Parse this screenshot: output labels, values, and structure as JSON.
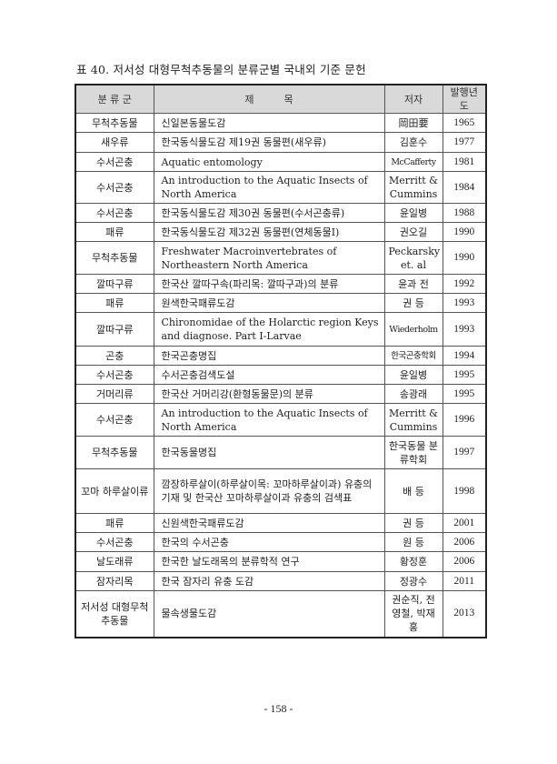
{
  "caption": "표 40. 저서성 대형무척추동물의 분류군별 국내외 기준 문헌",
  "table": {
    "headers": [
      "분 류 군",
      "제　　　목",
      "저자",
      "발행년도"
    ],
    "rows": [
      {
        "group": "무척추동물",
        "title": "신일본동물도감",
        "author": "岡田要",
        "year": "1965"
      },
      {
        "group": "새우류",
        "title": "한국동식물도감 제19권 동물편(새우류)",
        "author": "김훈수",
        "year": "1977"
      },
      {
        "group": "수서곤충",
        "title": "Aquatic entomology",
        "author": "McCafferty",
        "year": "1981"
      },
      {
        "group": "수서곤충",
        "title": "An introduction to the Aquatic Insects of North America",
        "author": "Merritt & Cummins",
        "year": "1984"
      },
      {
        "group": "수서곤충",
        "title": "한국동식물도감 제30권 동물편(수서곤충류)",
        "author": "윤일병",
        "year": "1988"
      },
      {
        "group": "패류",
        "title": "한국동식물도감 제32권 동물편(연체동물Ⅰ)",
        "author": "권오길",
        "year": "1990"
      },
      {
        "group": "무척추동물",
        "title": "Freshwater Macroinvertebrates of Northeastern North America",
        "author": "Peckarsky et. al",
        "year": "1990"
      },
      {
        "group": "깔따구류",
        "title": "한국산 깔따구속(파리목: 깔따구과)의 분류",
        "author": "윤과 전",
        "year": "1992"
      },
      {
        "group": "패류",
        "title": "원색한국패류도감",
        "author": "권 등",
        "year": "1993"
      },
      {
        "group": "깔따구류",
        "title": "Chironomidae of the Holarctic region Keys and diagnose. Part Ⅰ-Larvae",
        "author": "Wiederholm",
        "year": "1993"
      },
      {
        "group": "곤충",
        "title": "한국곤충명집",
        "author": "한국곤충학회",
        "year": "1994"
      },
      {
        "group": "수서곤충",
        "title": "수서곤충검색도설",
        "author": "윤일병",
        "year": "1995"
      },
      {
        "group": "거머리류",
        "title": "한국산 거머리강(환형동물문)의 분류",
        "author": "송광래",
        "year": "1995"
      },
      {
        "group": "수서곤충",
        "title": "An introduction to the Aquatic Insects of North America",
        "author": "Merritt & Cummins",
        "year": "1996"
      },
      {
        "group": "무척추동물",
        "title": "한국동물명집",
        "author": "한국동물 분류학회",
        "year": "1997"
      },
      {
        "group": "꼬마 하루살이류",
        "title": "깜장하루살이(하루살이목: 꼬마하루살이과) 유충의 기재 및 한국산 꼬마하루살이과 유충의 검색표",
        "author": "배 등",
        "year": "1998"
      },
      {
        "group": "패류",
        "title": "신원색한국패류도감",
        "author": "권 등",
        "year": "2001"
      },
      {
        "group": "수서곤충",
        "title": "한국의 수서곤충",
        "author": "원 등",
        "year": "2006"
      },
      {
        "group": "날도래류",
        "title": "한국한 날도래목의 분류학적 연구",
        "author": "황정훈",
        "year": "2006"
      },
      {
        "group": "잠자리목",
        "title": "한국 잠자리 유충 도감",
        "author": "정광수",
        "year": "2011"
      },
      {
        "group": "저서성 대형무척추동물",
        "title": "물속생물도감",
        "author": "권순직, 전영철, 박재홍",
        "year": "2013"
      }
    ]
  },
  "page_number": "- 158 -"
}
